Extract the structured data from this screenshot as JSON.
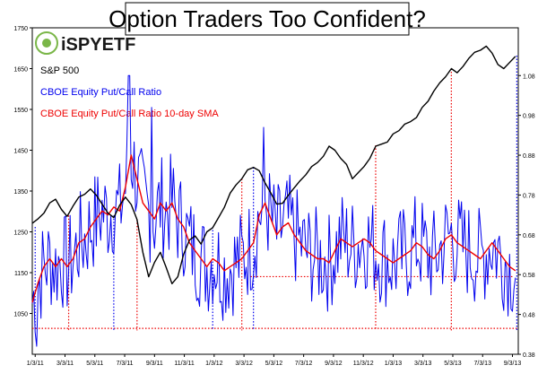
{
  "chart_data": {
    "type": "line",
    "title": "Option Traders Too Confident?",
    "logo": {
      "text": "iSPYETF",
      "color": "#1a1a1a",
      "accent": "#7ab648"
    },
    "x_ticks": [
      "1/3/11",
      "3/3/11",
      "5/3/11",
      "7/3/11",
      "9/3/11",
      "11/3/11",
      "1/3/12",
      "3/3/12",
      "5/3/12",
      "7/3/12",
      "9/3/12",
      "11/3/12",
      "1/3/13",
      "3/3/13",
      "5/3/13",
      "7/3/13",
      "9/3/13"
    ],
    "y_left": {
      "ticks": [
        1050,
        1150,
        1250,
        1350,
        1450,
        1550,
        1650,
        1750
      ],
      "range": [
        950,
        1750
      ]
    },
    "y_right": {
      "ticks": [
        0.38,
        0.48,
        0.58,
        0.68,
        0.78,
        0.88,
        0.98,
        1.08
      ],
      "range": [
        0.38,
        1.2
      ]
    },
    "series": [
      {
        "name": "S&P 500",
        "color": "#000000",
        "axis": "left",
        "points": [
          [
            0,
            1271
          ],
          [
            4,
            1282
          ],
          [
            8,
            1296
          ],
          [
            12,
            1321
          ],
          [
            16,
            1330
          ],
          [
            20,
            1305
          ],
          [
            24,
            1288
          ],
          [
            28,
            1313
          ],
          [
            32,
            1335
          ],
          [
            36,
            1342
          ],
          [
            40,
            1355
          ],
          [
            44,
            1340
          ],
          [
            48,
            1318
          ],
          [
            52,
            1296
          ],
          [
            56,
            1285
          ],
          [
            60,
            1315
          ],
          [
            64,
            1335
          ],
          [
            68,
            1317
          ],
          [
            72,
            1280
          ],
          [
            76,
            1200
          ],
          [
            80,
            1140
          ],
          [
            84,
            1175
          ],
          [
            88,
            1200
          ],
          [
            92,
            1163
          ],
          [
            96,
            1123
          ],
          [
            100,
            1140
          ],
          [
            104,
            1195
          ],
          [
            108,
            1230
          ],
          [
            112,
            1240
          ],
          [
            116,
            1220
          ],
          [
            120,
            1250
          ],
          [
            124,
            1260
          ],
          [
            128,
            1285
          ],
          [
            132,
            1310
          ],
          [
            136,
            1345
          ],
          [
            140,
            1365
          ],
          [
            144,
            1380
          ],
          [
            148,
            1402
          ],
          [
            152,
            1408
          ],
          [
            156,
            1400
          ],
          [
            160,
            1370
          ],
          [
            164,
            1345
          ],
          [
            168,
            1318
          ],
          [
            172,
            1320
          ],
          [
            176,
            1340
          ],
          [
            180,
            1358
          ],
          [
            184,
            1375
          ],
          [
            188,
            1390
          ],
          [
            192,
            1410
          ],
          [
            196,
            1420
          ],
          [
            200,
            1435
          ],
          [
            204,
            1460
          ],
          [
            208,
            1450
          ],
          [
            212,
            1430
          ],
          [
            216,
            1415
          ],
          [
            220,
            1380
          ],
          [
            224,
            1395
          ],
          [
            228,
            1410
          ],
          [
            232,
            1430
          ],
          [
            236,
            1460
          ],
          [
            240,
            1465
          ],
          [
            244,
            1470
          ],
          [
            248,
            1490
          ],
          [
            252,
            1498
          ],
          [
            256,
            1514
          ],
          [
            260,
            1520
          ],
          [
            264,
            1530
          ],
          [
            268,
            1555
          ],
          [
            272,
            1570
          ],
          [
            276,
            1595
          ],
          [
            280,
            1615
          ],
          [
            284,
            1630
          ],
          [
            288,
            1650
          ],
          [
            292,
            1640
          ],
          [
            296,
            1655
          ],
          [
            300,
            1675
          ],
          [
            304,
            1690
          ],
          [
            308,
            1695
          ],
          [
            312,
            1705
          ],
          [
            316,
            1688
          ],
          [
            320,
            1660
          ],
          [
            324,
            1650
          ],
          [
            328,
            1665
          ],
          [
            332,
            1680
          ]
        ]
      },
      {
        "name": "CBOE Equity Put/Call Ratio",
        "color": "#0000ee",
        "axis": "right",
        "points": []
      },
      {
        "name": "CBOE Equity Put/Call Ratio 10-day SMA",
        "color": "#ee0000",
        "axis": "right",
        "points": [
          [
            0,
            0.51
          ],
          [
            4,
            0.56
          ],
          [
            8,
            0.6
          ],
          [
            12,
            0.62
          ],
          [
            16,
            0.6
          ],
          [
            20,
            0.62
          ],
          [
            24,
            0.6
          ],
          [
            28,
            0.62
          ],
          [
            32,
            0.66
          ],
          [
            36,
            0.67
          ],
          [
            40,
            0.7
          ],
          [
            44,
            0.72
          ],
          [
            48,
            0.74
          ],
          [
            52,
            0.73
          ],
          [
            56,
            0.75
          ],
          [
            60,
            0.74
          ],
          [
            64,
            0.8
          ],
          [
            68,
            0.88
          ],
          [
            72,
            0.82
          ],
          [
            76,
            0.76
          ],
          [
            80,
            0.74
          ],
          [
            84,
            0.72
          ],
          [
            88,
            0.76
          ],
          [
            92,
            0.74
          ],
          [
            96,
            0.76
          ],
          [
            100,
            0.72
          ],
          [
            104,
            0.7
          ],
          [
            108,
            0.66
          ],
          [
            112,
            0.64
          ],
          [
            116,
            0.62
          ],
          [
            120,
            0.6
          ],
          [
            124,
            0.62
          ],
          [
            128,
            0.61
          ],
          [
            132,
            0.59
          ],
          [
            136,
            0.6
          ],
          [
            140,
            0.61
          ],
          [
            144,
            0.62
          ],
          [
            148,
            0.64
          ],
          [
            152,
            0.66
          ],
          [
            156,
            0.73
          ],
          [
            160,
            0.76
          ],
          [
            164,
            0.72
          ],
          [
            168,
            0.68
          ],
          [
            172,
            0.7
          ],
          [
            176,
            0.71
          ],
          [
            180,
            0.68
          ],
          [
            184,
            0.66
          ],
          [
            188,
            0.64
          ],
          [
            192,
            0.63
          ],
          [
            196,
            0.62
          ],
          [
            200,
            0.62
          ],
          [
            204,
            0.61
          ],
          [
            208,
            0.64
          ],
          [
            212,
            0.67
          ],
          [
            216,
            0.66
          ],
          [
            220,
            0.65
          ],
          [
            224,
            0.66
          ],
          [
            228,
            0.67
          ],
          [
            232,
            0.66
          ],
          [
            236,
            0.64
          ],
          [
            240,
            0.63
          ],
          [
            244,
            0.62
          ],
          [
            248,
            0.61
          ],
          [
            252,
            0.62
          ],
          [
            256,
            0.63
          ],
          [
            260,
            0.64
          ],
          [
            264,
            0.66
          ],
          [
            268,
            0.65
          ],
          [
            272,
            0.63
          ],
          [
            276,
            0.62
          ],
          [
            280,
            0.64
          ],
          [
            284,
            0.67
          ],
          [
            288,
            0.68
          ],
          [
            292,
            0.66
          ],
          [
            296,
            0.65
          ],
          [
            300,
            0.64
          ],
          [
            304,
            0.63
          ],
          [
            308,
            0.62
          ],
          [
            312,
            0.64
          ],
          [
            316,
            0.66
          ],
          [
            320,
            0.64
          ],
          [
            324,
            0.62
          ],
          [
            328,
            0.6
          ],
          [
            332,
            0.59
          ]
        ]
      }
    ],
    "reference_lines": [
      {
        "style": "dotted",
        "color": "#ee0000",
        "orientation": "horizontal",
        "axis": "right",
        "value": 0.575,
        "x_range": [
          150,
          330
        ]
      },
      {
        "style": "dotted",
        "color": "#ee0000",
        "orientation": "horizontal",
        "axis": "right",
        "value": 0.445,
        "x_range": [
          0,
          333
        ]
      }
    ],
    "signal_lines": [
      {
        "color": "#0000ee",
        "x": 2,
        "top": 1262
      },
      {
        "color": "#ee0000",
        "x": 25,
        "top": 1290
      },
      {
        "color": "#0000ee",
        "x": 56,
        "top": 1290
      },
      {
        "color": "#ee0000",
        "x": 72,
        "top": 1280
      },
      {
        "color": "#0000ee",
        "x": 124,
        "top": 1262
      },
      {
        "color": "#ee0000",
        "x": 144,
        "top": 1380
      },
      {
        "color": "#0000ee",
        "x": 152,
        "top": 1408
      },
      {
        "color": "#ee0000",
        "x": 236,
        "top": 1462
      },
      {
        "color": "#ee0000",
        "x": 288,
        "top": 1650
      },
      {
        "color": "#0000ee",
        "x": 333,
        "top": 1682
      }
    ],
    "legend_placement": "top-left",
    "grid": false
  }
}
